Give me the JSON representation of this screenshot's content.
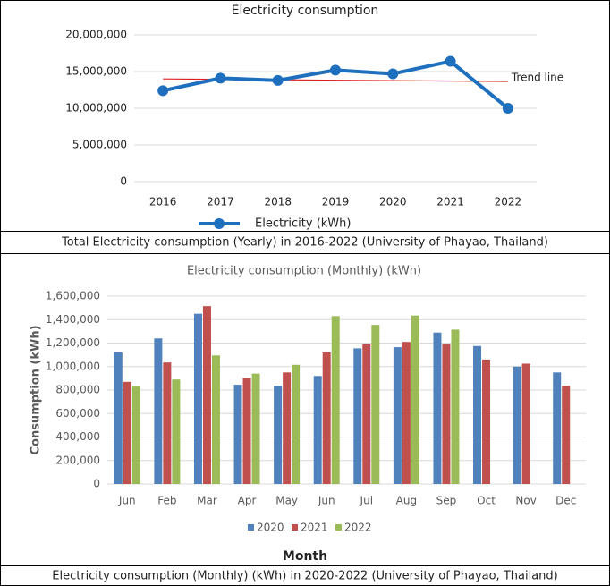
{
  "chart_data": [
    {
      "type": "line",
      "title": "Electricity consumption",
      "caption": "Total Electricity consumption (Yearly) in 2016-2022 (University of Phayao, Thailand)",
      "categories": [
        "2016",
        "2017",
        "2018",
        "2019",
        "2020",
        "2021",
        "2022"
      ],
      "series": [
        {
          "name": "Electricity (kWh)",
          "color": "#1f6fbf",
          "values": [
            12400000,
            14100000,
            13800000,
            15200000,
            14700000,
            16400000,
            10000000
          ]
        }
      ],
      "trendline": {
        "name": "Trend line",
        "color": "#e02020",
        "start": 14000000,
        "end": 13650000
      },
      "ylim": [
        0,
        20000000
      ],
      "yticks": [
        0,
        {
          "value": 5000000,
          "label": "5,000,000"
        },
        {
          "value": 10000000,
          "label": "10,000,000"
        },
        {
          "value": 15000000,
          "label": "15,000,000"
        },
        {
          "value": 20000000,
          "label": "20,000,000"
        }
      ],
      "grid": true
    },
    {
      "type": "bar",
      "title": "Electricity consumption (Monthly) (kWh)",
      "caption": "Electricity consumption (Monthly) (kWh) in 2020-2022 (University of Phayao, Thailand)",
      "x_label": "Month",
      "y_label": "Consumption (kWh)",
      "categories": [
        "Jun",
        "Feb",
        "Mar",
        "Apr",
        "May",
        "Jun",
        "Jul",
        "Aug",
        "Sep",
        "Oct",
        "Nov",
        "Dec"
      ],
      "series": [
        {
          "name": "2020",
          "color": "#4f81bd",
          "values": [
            1120000,
            1240000,
            1450000,
            845000,
            835000,
            920000,
            1155000,
            1165000,
            1290000,
            1175000,
            1000000,
            950000
          ]
        },
        {
          "name": "2021",
          "color": "#c0504d",
          "values": [
            870000,
            1035000,
            1515000,
            905000,
            950000,
            1120000,
            1190000,
            1210000,
            1195000,
            1060000,
            1025000,
            835000
          ]
        },
        {
          "name": "2022",
          "color": "#9bbb59",
          "values": [
            830000,
            890000,
            1095000,
            940000,
            1015000,
            1430000,
            1355000,
            1435000,
            1315000,
            null,
            null,
            null
          ]
        }
      ],
      "ylim": [
        0,
        1600000
      ],
      "yticks": [
        0,
        {
          "value": 200000,
          "label": "200,000"
        },
        {
          "value": 400000,
          "label": "400,000"
        },
        {
          "value": 600000,
          "label": "600,000"
        },
        {
          "value": 800000,
          "label": "800,000"
        },
        {
          "value": 1000000,
          "label": "1,000,000"
        },
        {
          "value": 1200000,
          "label": "1,200,000"
        },
        {
          "value": 1400000,
          "label": "1,400,000"
        },
        {
          "value": 1600000,
          "label": "1,600,000"
        }
      ],
      "grid": true
    }
  ]
}
